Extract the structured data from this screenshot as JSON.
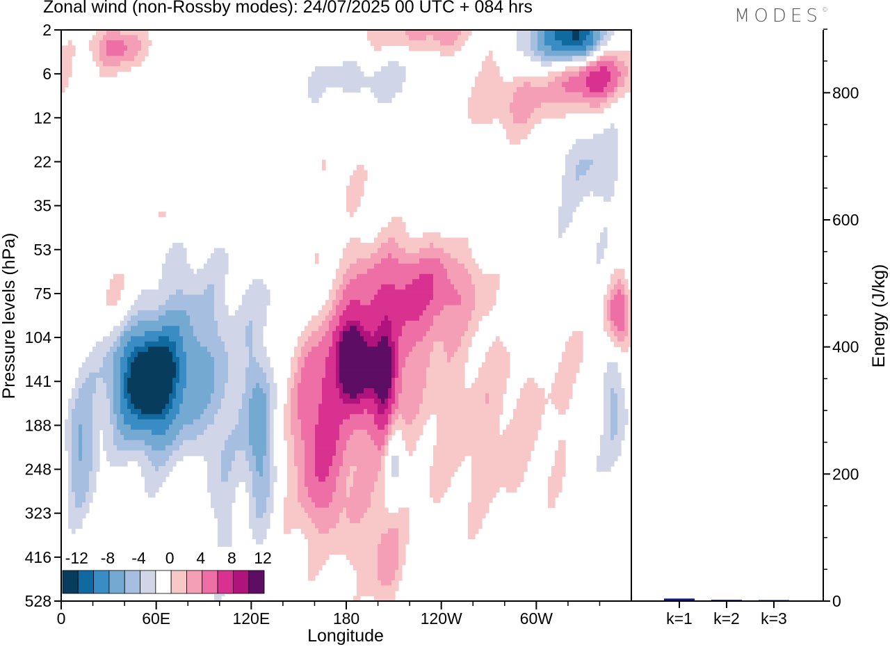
{
  "title": "Zonal wind (non-Rossby modes):  24/07/2025  00 UTC  + 084 hrs",
  "brand": "MODES",
  "brand_mark": "©",
  "colors": {
    "neg6": "#083c5c",
    "neg5": "#106aa0",
    "neg4": "#3a8cc4",
    "neg3": "#74a9d1",
    "neg2": "#a6bedf",
    "neg1": "#d1d5e8",
    "zero": "#ffffff",
    "pos1": "#f8c7c8",
    "pos2": "#f59fb7",
    "pos3": "#ee6ea6",
    "pos4": "#d9318f",
    "pos5": "#b1137c",
    "pos6": "#5d0d63",
    "bar": "#0b1a8a"
  },
  "chart_data": [
    {
      "type": "heatmap",
      "title": "Zonal wind (non-Rossby modes):  24/07/2025  00 UTC  + 084 hrs",
      "xlabel": "Longitude",
      "ylabel": "Pressure levels (hPa)",
      "x_range_deg": [
        0,
        360
      ],
      "x_ticks": [
        {
          "deg": 0,
          "label": "0"
        },
        {
          "deg": 60,
          "label": "60E"
        },
        {
          "deg": 120,
          "label": "120E"
        },
        {
          "deg": 180,
          "label": "180"
        },
        {
          "deg": 240,
          "label": "120W"
        },
        {
          "deg": 300,
          "label": "60W"
        }
      ],
      "y_levels": [
        "2",
        "6",
        "12",
        "22",
        "35",
        "53",
        "75",
        "104",
        "141",
        "188",
        "248",
        "323",
        "416",
        "528"
      ],
      "colorbar": {
        "labels": [
          "-12",
          "-8",
          "-4",
          "0",
          "4",
          "8",
          "12"
        ],
        "levels": [
          "neg6",
          "neg5",
          "neg4",
          "neg3",
          "neg2",
          "neg1",
          "zero",
          "pos1",
          "pos2",
          "pos3",
          "pos4",
          "pos5",
          "pos6"
        ]
      },
      "features": [
        {
          "lon": 55,
          "lev": 8.0,
          "value": -15,
          "wlon": 22,
          "wlev": 1.3
        },
        {
          "lon": 75,
          "lev": 7.5,
          "value": -6,
          "wlon": 40,
          "wlev": 2.4
        },
        {
          "lon": 12,
          "lev": 9.5,
          "value": -6,
          "wlon": 10,
          "wlev": 1.6
        },
        {
          "lon": 125,
          "lev": 9.2,
          "value": -8,
          "wlon": 9,
          "wlev": 2.0
        },
        {
          "lon": 100,
          "lev": 10.5,
          "value": -4,
          "wlon": 12,
          "wlev": 2.5
        },
        {
          "lon": 150,
          "lev": 6.2,
          "value": -3,
          "wlon": 25,
          "wlev": 0.9
        },
        {
          "lon": 167,
          "lev": 12.8,
          "value": -2,
          "wlon": 8,
          "wlev": 1.5
        },
        {
          "lon": 210,
          "lev": 9.6,
          "value": -7,
          "wlon": 6,
          "wlev": 1.0
        },
        {
          "lon": 348,
          "lev": 8.1,
          "value": -7,
          "wlon": 8,
          "wlev": 1.5
        },
        {
          "lon": 336,
          "lev": 9.5,
          "value": -3,
          "wlon": 10,
          "wlev": 2.0
        },
        {
          "lon": 325,
          "lev": 0.2,
          "value": -14,
          "wlon": 18,
          "wlev": 0.7
        },
        {
          "lon": 305,
          "lev": 0.3,
          "value": -5,
          "wlon": 25,
          "wlev": 0.8
        },
        {
          "lon": 200,
          "lev": 1.1,
          "value": -3,
          "wlon": 60,
          "wlev": 0.6
        },
        {
          "lon": 335,
          "lev": 3.0,
          "value": -4,
          "wlon": 22,
          "wlev": 1.0
        },
        {
          "lon": 320,
          "lev": 5.5,
          "value": -2,
          "wlon": 40,
          "wlev": 1.5
        },
        {
          "lon": 185,
          "lev": 7.6,
          "value": 14,
          "wlon": 10,
          "wlev": 0.9
        },
        {
          "lon": 205,
          "lev": 8.2,
          "value": 11,
          "wlon": 8,
          "wlev": 1.3
        },
        {
          "lon": 190,
          "lev": 7.2,
          "value": 6,
          "wlon": 40,
          "wlev": 1.8
        },
        {
          "lon": 162,
          "lev": 9.4,
          "value": 6,
          "wlon": 14,
          "wlev": 2.0
        },
        {
          "lon": 175,
          "lev": 9.8,
          "value": 4,
          "wlon": 30,
          "wlev": 2.8
        },
        {
          "lon": 215,
          "lev": 6.0,
          "value": 5,
          "wlon": 35,
          "wlev": 1.2
        },
        {
          "lon": 240,
          "lev": 5.8,
          "value": 4,
          "wlon": 30,
          "wlev": 0.9
        },
        {
          "lon": 205,
          "lev": 12.0,
          "value": 4,
          "wlon": 12,
          "wlev": 1.2
        },
        {
          "lon": 270,
          "lev": 9.0,
          "value": 3,
          "wlon": 55,
          "wlev": 2.5
        },
        {
          "lon": 352,
          "lev": 6.5,
          "value": 9,
          "wlon": 8,
          "wlev": 0.8
        },
        {
          "lon": 340,
          "lev": 7.5,
          "value": 3,
          "wlon": 22,
          "wlev": 1.8
        },
        {
          "lon": 335,
          "lev": 1.0,
          "value": 12,
          "wlon": 22,
          "wlev": 0.6
        },
        {
          "lon": 290,
          "lev": 1.5,
          "value": 5,
          "wlon": 40,
          "wlev": 0.9
        },
        {
          "lon": 230,
          "lev": 0.0,
          "value": 5,
          "wlon": 40,
          "wlev": 0.6
        },
        {
          "lon": 35,
          "lev": 0.4,
          "value": 7,
          "wlon": 18,
          "wlev": 0.5
        },
        {
          "lon": 40,
          "lev": 6.2,
          "value": 4,
          "wlon": 25,
          "wlev": 0.9
        },
        {
          "lon": 90,
          "lev": 10.5,
          "value": 2,
          "wlon": 20,
          "wlev": 2.2
        },
        {
          "lon": 175,
          "lev": 3.4,
          "value": 2,
          "wlon": 20,
          "wlev": 0.8
        },
        {
          "lon": 60,
          "lev": 4.3,
          "value": 2,
          "wlon": 40,
          "wlev": 0.5
        }
      ]
    },
    {
      "type": "bar",
      "ylabel": "Energy (J/kg)",
      "categories": [
        "k=1",
        "k=2",
        "k=3"
      ],
      "values": [
        4,
        2,
        1.5
      ],
      "ylim": [
        0,
        900
      ],
      "y_ticks": [
        0,
        200,
        400,
        600,
        800
      ]
    }
  ]
}
